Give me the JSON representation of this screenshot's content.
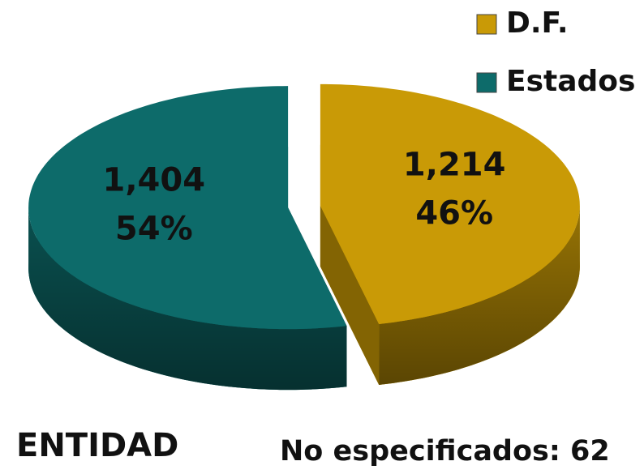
{
  "chart_data": {
    "type": "pie",
    "categories": [
      "D.F.",
      "Estados"
    ],
    "values": [
      1214,
      1404
    ],
    "value_labels": [
      "1,214",
      "1,404"
    ],
    "percentages": [
      46,
      54
    ],
    "percentage_labels": [
      "46%",
      "54%"
    ],
    "colors": [
      "#c99a06",
      "#0d6b6a"
    ],
    "legend": "top-right",
    "title": "ENTIDAD",
    "annotation": "No especificados: 62"
  }
}
